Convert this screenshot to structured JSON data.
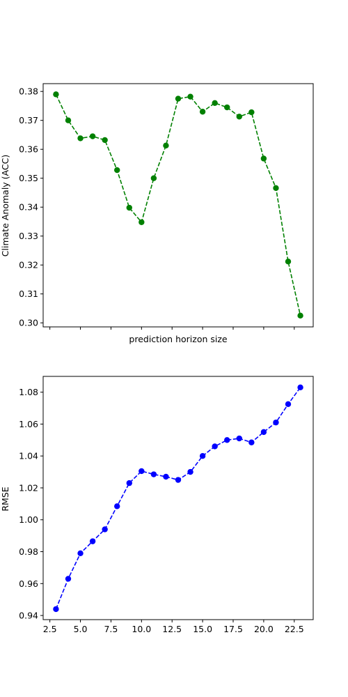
{
  "chart_data": [
    {
      "type": "line",
      "title": "",
      "xlabel": "prediction horizon size",
      "ylabel": "Climate Anomaly (ACC)",
      "xlim": [
        1.95,
        24.05
      ],
      "ylim": [
        0.2986,
        0.3827
      ],
      "xticks": [
        2.5,
        5.0,
        7.5,
        10.0,
        12.5,
        15.0,
        17.5,
        20.0,
        22.5
      ],
      "show_xtick_labels": false,
      "yticks": [
        0.3,
        0.31,
        0.32,
        0.33,
        0.34,
        0.35,
        0.36,
        0.37,
        0.38
      ],
      "ytick_labels": [
        "0.30",
        "0.31",
        "0.32",
        "0.33",
        "0.34",
        "0.35",
        "0.36",
        "0.37",
        "0.38"
      ],
      "grid": false,
      "series": [
        {
          "color": "#008000",
          "line_style": "dashed",
          "marker": "circle",
          "x": [
            3,
            4,
            5,
            6,
            7,
            8,
            9,
            10,
            11,
            12,
            13,
            14,
            15,
            16,
            17,
            18,
            19,
            20,
            21,
            22,
            23
          ],
          "y": [
            0.379,
            0.37,
            0.3638,
            0.3645,
            0.3632,
            0.3528,
            0.3398,
            0.3348,
            0.35,
            0.3613,
            0.3775,
            0.3782,
            0.373,
            0.376,
            0.3745,
            0.3713,
            0.3728,
            0.3568,
            0.3466,
            0.3212,
            0.3025
          ]
        }
      ]
    },
    {
      "type": "line",
      "title": "",
      "xlabel": "",
      "ylabel": "RMSE",
      "xlim": [
        1.95,
        24.05
      ],
      "ylim": [
        0.9374,
        1.0899
      ],
      "xticks": [
        2.5,
        5.0,
        7.5,
        10.0,
        12.5,
        15.0,
        17.5,
        20.0,
        22.5
      ],
      "xtick_labels": [
        "2.5",
        "5.0",
        "7.5",
        "10.0",
        "12.5",
        "15.0",
        "17.5",
        "20.0",
        "22.5"
      ],
      "yticks": [
        0.94,
        0.96,
        0.98,
        1.0,
        1.02,
        1.04,
        1.06,
        1.08
      ],
      "ytick_labels": [
        "0.94",
        "0.96",
        "0.98",
        "1.00",
        "1.02",
        "1.04",
        "1.06",
        "1.08"
      ],
      "grid": false,
      "series": [
        {
          "color": "#0000ff",
          "line_style": "dashed",
          "marker": "circle",
          "x": [
            3,
            4,
            5,
            6,
            7,
            8,
            9,
            10,
            11,
            12,
            13,
            14,
            15,
            16,
            17,
            18,
            19,
            20,
            21,
            22,
            23
          ],
          "y": [
            0.944,
            0.963,
            0.979,
            0.9865,
            0.994,
            1.0085,
            1.023,
            1.0305,
            1.0285,
            1.027,
            1.025,
            1.03,
            1.04,
            1.046,
            1.05,
            1.051,
            1.0485,
            1.055,
            1.061,
            1.0725,
            1.083
          ]
        }
      ]
    }
  ]
}
